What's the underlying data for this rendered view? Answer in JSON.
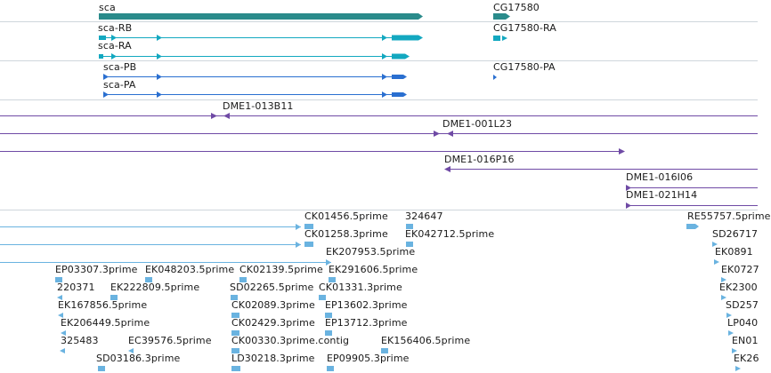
{
  "colors": {
    "gene": "#2a8b8b",
    "transcript_rb_ra": "#13a8c0",
    "transcript_pb_pa": "#2a6fd0",
    "clone": "#6f4aa5",
    "est": "#6ab3e0",
    "separator": "#cfd6dc"
  },
  "genes": [
    {
      "label": "sca"
    },
    {
      "label": "CG17580"
    }
  ],
  "transcripts": [
    {
      "label": "sca-RB"
    },
    {
      "label": "sca-RA"
    },
    {
      "label": "CG17580-RA"
    }
  ],
  "proteins": [
    {
      "label": "sca-PB"
    },
    {
      "label": "sca-PA"
    },
    {
      "label": "CG17580-PA"
    }
  ],
  "clones": [
    {
      "label": "DME1-013B11"
    },
    {
      "label": "DME1-001L23"
    },
    {
      "label": "DME1-016P16"
    },
    {
      "label": "DME1-016I06"
    },
    {
      "label": "DME1-021H14"
    }
  ],
  "ests": [
    {
      "label": "CK01456.5prime"
    },
    {
      "label": "324647"
    },
    {
      "label": "RE55757.5prime"
    },
    {
      "label": "CK01258.3prime"
    },
    {
      "label": "EK042712.5prime"
    },
    {
      "label": "SD26717"
    },
    {
      "label": "EK207953.5prime"
    },
    {
      "label": "EK0891"
    },
    {
      "label": "EP03307.3prime"
    },
    {
      "label": "EK048203.5prime"
    },
    {
      "label": "CK02139.5prime"
    },
    {
      "label": "EK291606.5prime"
    },
    {
      "label": "EK0727"
    },
    {
      "label": "220371"
    },
    {
      "label": "EK222809.5prime"
    },
    {
      "label": "SD02265.5prime"
    },
    {
      "label": "CK01331.3prime"
    },
    {
      "label": "EK2300"
    },
    {
      "label": "EK167856.5prime"
    },
    {
      "label": "CK02089.3prime"
    },
    {
      "label": "EP13602.3prime"
    },
    {
      "label": "SD257"
    },
    {
      "label": "EK206449.5prime"
    },
    {
      "label": "CK02429.3prime"
    },
    {
      "label": "EP13712.3prime"
    },
    {
      "label": "LP040"
    },
    {
      "label": "325483"
    },
    {
      "label": "EC39576.5prime"
    },
    {
      "label": "CK00330.3prime.contig"
    },
    {
      "label": "EK156406.5prime"
    },
    {
      "label": "EN01"
    },
    {
      "label": "SD03186.3prime"
    },
    {
      "label": "LD30218.3prime"
    },
    {
      "label": "EP09905.3prime"
    },
    {
      "label": "EK26"
    }
  ]
}
